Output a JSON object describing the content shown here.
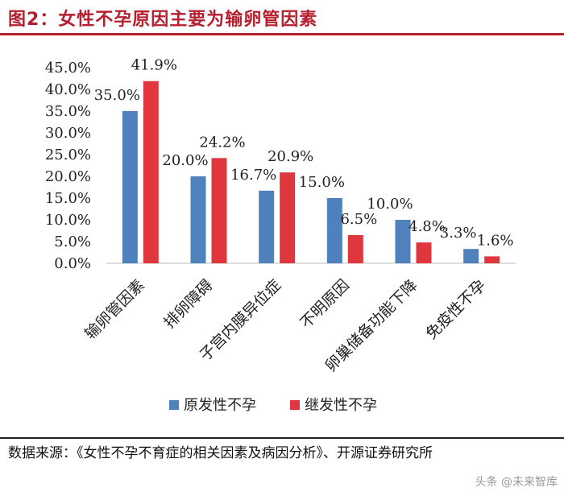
{
  "header": {
    "title": "图2：女性不孕原因主要为输卵管因素",
    "accent_color": "#b51f2e"
  },
  "chart_data": {
    "type": "bar",
    "title": "",
    "xlabel": "",
    "ylabel": "",
    "categories": [
      "输卵管因素",
      "排卵障碍",
      "子宫内膜异位症",
      "不明原因",
      "卵巢储备功能下降",
      "免疫性不孕"
    ],
    "series": [
      {
        "name": "原发性不孕",
        "values": [
          35.0,
          20.0,
          16.7,
          15.0,
          10.0,
          3.3
        ],
        "labels": [
          "35.0%",
          "20.0%",
          "16.7%",
          "15.0%",
          "10.0%",
          "3.3%"
        ],
        "color": "#4f81bd"
      },
      {
        "name": "继发性不孕",
        "values": [
          41.9,
          24.2,
          20.9,
          6.5,
          4.8,
          1.6
        ],
        "labels": [
          "41.9%",
          "24.2%",
          "20.9%",
          "6.5%",
          "4.8%",
          "1.6%"
        ],
        "color": "#e0373f"
      }
    ],
    "ylim": [
      0,
      45
    ],
    "yticks": [
      "0.0%",
      "5.0%",
      "10.0%",
      "15.0%",
      "20.0%",
      "25.0%",
      "30.0%",
      "35.0%",
      "40.0%",
      "45.0%"
    ],
    "grid": false,
    "legend": "bottom"
  },
  "footer": {
    "source": "数据来源：《女性不孕不育症的相关因素及病因分析》、开源证券研究所",
    "watermark": "头条 @未来智库"
  }
}
